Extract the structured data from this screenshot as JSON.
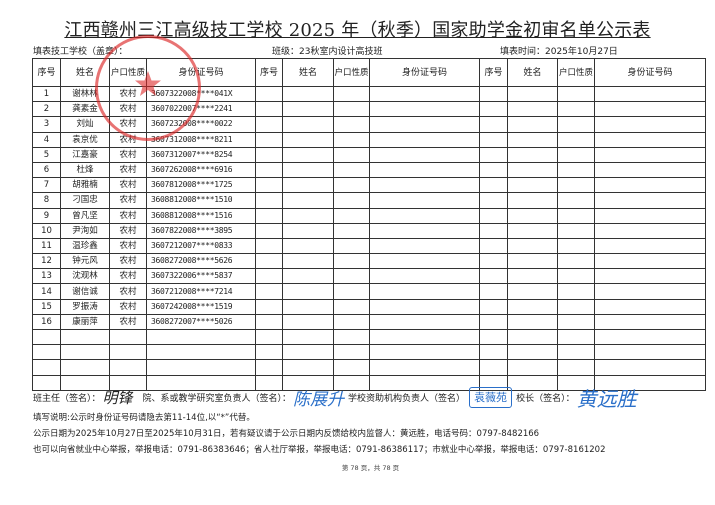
{
  "title": "江西赣州三江高级技工学校 2025 年（秋季）国家助学金初审名单公示表",
  "subheader": {
    "school_label": "填表技工学校（盖章）：",
    "class_label": "班级：23秋室内设计高技班",
    "date_label": "填表时间：2025年10月27日"
  },
  "columns": [
    "序号",
    "姓名",
    "户口性质",
    "身份证号码"
  ],
  "rows": [
    {
      "no": "1",
      "name": "谢林林",
      "hukou": "农村",
      "id": "3607322008****041X"
    },
    {
      "no": "2",
      "name": "龚素金",
      "hukou": "农村",
      "id": "3607022007****2241"
    },
    {
      "no": "3",
      "name": "刘灿",
      "hukou": "农村",
      "id": "3607232008****0022"
    },
    {
      "no": "4",
      "name": "袁京优",
      "hukou": "农村",
      "id": "3607312008****8211"
    },
    {
      "no": "5",
      "name": "江嘉豪",
      "hukou": "农村",
      "id": "3607312007****8254"
    },
    {
      "no": "6",
      "name": "杜烽",
      "hukou": "农村",
      "id": "3607262008****6916"
    },
    {
      "no": "7",
      "name": "胡雅楠",
      "hukou": "农村",
      "id": "3607812008****1725"
    },
    {
      "no": "8",
      "name": "刁国忠",
      "hukou": "农村",
      "id": "3608812008****1510"
    },
    {
      "no": "9",
      "name": "曾凡坚",
      "hukou": "农村",
      "id": "3608812008****1516"
    },
    {
      "no": "10",
      "name": "尹洵如",
      "hukou": "农村",
      "id": "3607822008****3895"
    },
    {
      "no": "11",
      "name": "温珍鑫",
      "hukou": "农村",
      "id": "3607212007****0833"
    },
    {
      "no": "12",
      "name": "钟元风",
      "hukou": "农村",
      "id": "3608272008****5626"
    },
    {
      "no": "13",
      "name": "沈观林",
      "hukou": "农村",
      "id": "3607322006****5837"
    },
    {
      "no": "14",
      "name": "谢信诚",
      "hukou": "农村",
      "id": "3607212008****7214"
    },
    {
      "no": "15",
      "name": "罗振涛",
      "hukou": "农村",
      "id": "3607242008****1519"
    },
    {
      "no": "16",
      "name": "康丽萍",
      "hukou": "农村",
      "id": "3608272007****5026"
    }
  ],
  "signatures": {
    "teacher_label": "班主任（签名）：",
    "teacher_sig": "明锋",
    "dept_label": "院、系或教学研究室负责人（签名）：",
    "dept_sig": "陈展升",
    "aid_label": "学校资助机构负责人（签名）",
    "aid_sig": "袁薇苑",
    "principal_label": "校长（签名）：",
    "principal_sig": "黄远胜"
  },
  "notes": [
    "填写说明:公示时身份证号码请隐去第11-14位,以“*”代替。",
    "公示日期为2025年10月27日至2025年10月31日，若有疑议请于公示日期内反馈给校内监督人：黄远胜，电话号码：0797-8482166",
    "也可以向省就业中心举报，举报电话：0791-86383646；省人社厅举报，举报电话：0791-86386117；市就业中心举报，举报电话：0797-8161202"
  ],
  "footer": "第 78 页，共 78 页",
  "stamp_text": "江西赣州三江高级技工学校",
  "colors": {
    "stamp": "#dc2828",
    "signature_ink": "#2a6fc9"
  }
}
